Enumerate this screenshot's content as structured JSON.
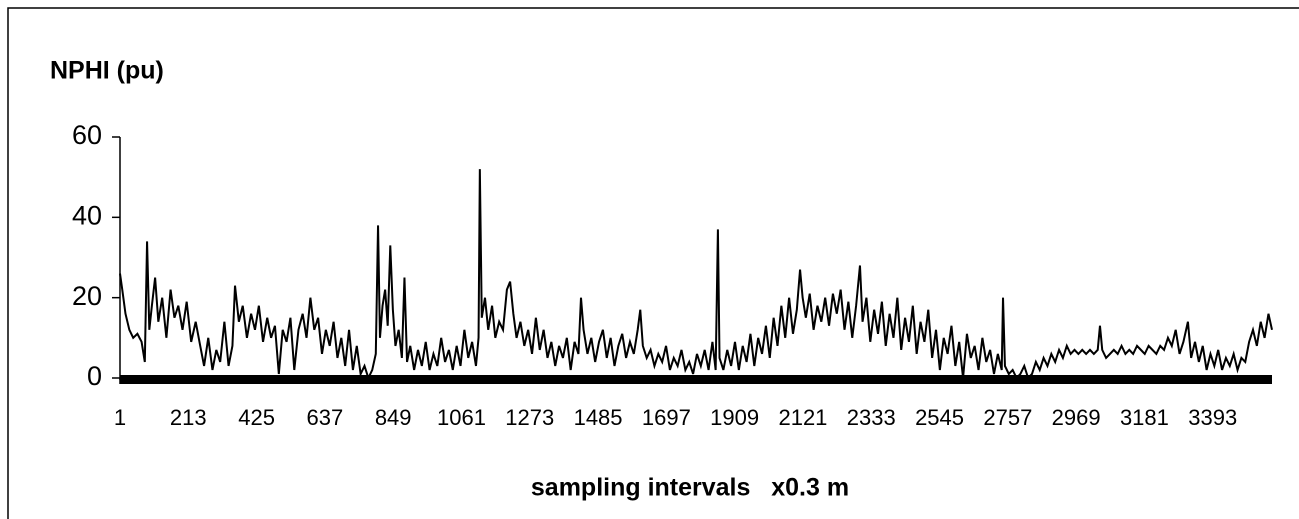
{
  "chart_data": {
    "type": "line",
    "title": "NPHI (pu)",
    "x_label": "sampling intervals   x0.3 m",
    "x": [
      1,
      8,
      18,
      30,
      42,
      55,
      68,
      78,
      85,
      92,
      100,
      110,
      120,
      132,
      145,
      158,
      170,
      182,
      195,
      208,
      222,
      236,
      250,
      262,
      275,
      288,
      300,
      312,
      325,
      338,
      350,
      358,
      370,
      382,
      395,
      408,
      420,
      432,
      445,
      458,
      470,
      482,
      494,
      506,
      518,
      530,
      542,
      555,
      568,
      580,
      592,
      604,
      616,
      628,
      640,
      652,
      664,
      676,
      688,
      700,
      712,
      724,
      736,
      748,
      760,
      772,
      784,
      795,
      802,
      808,
      816,
      824,
      832,
      840,
      848,
      856,
      866,
      876,
      884,
      892,
      902,
      914,
      926,
      938,
      950,
      962,
      974,
      986,
      998,
      1010,
      1022,
      1034,
      1046,
      1058,
      1070,
      1082,
      1094,
      1106,
      1114,
      1118,
      1124,
      1134,
      1144,
      1156,
      1166,
      1178,
      1190,
      1202,
      1212,
      1222,
      1232,
      1244,
      1256,
      1268,
      1280,
      1292,
      1304,
      1316,
      1328,
      1340,
      1352,
      1364,
      1376,
      1388,
      1400,
      1412,
      1424,
      1432,
      1440,
      1452,
      1464,
      1476,
      1488,
      1500,
      1512,
      1524,
      1536,
      1548,
      1560,
      1572,
      1584,
      1596,
      1608,
      1616,
      1624,
      1636,
      1648,
      1660,
      1672,
      1684,
      1696,
      1708,
      1720,
      1732,
      1744,
      1756,
      1768,
      1780,
      1792,
      1804,
      1816,
      1828,
      1840,
      1850,
      1857,
      1862,
      1874,
      1886,
      1898,
      1910,
      1922,
      1934,
      1946,
      1958,
      1970,
      1982,
      1994,
      2006,
      2018,
      2030,
      2042,
      2054,
      2066,
      2078,
      2090,
      2102,
      2112,
      2120,
      2130,
      2142,
      2154,
      2166,
      2178,
      2190,
      2202,
      2214,
      2226,
      2238,
      2250,
      2262,
      2274,
      2286,
      2298,
      2306,
      2318,
      2330,
      2342,
      2354,
      2366,
      2378,
      2390,
      2402,
      2414,
      2426,
      2438,
      2450,
      2462,
      2474,
      2486,
      2498,
      2510,
      2522,
      2534,
      2546,
      2558,
      2570,
      2582,
      2594,
      2606,
      2618,
      2630,
      2642,
      2654,
      2666,
      2678,
      2690,
      2702,
      2714,
      2726,
      2738,
      2742,
      2748,
      2760,
      2772,
      2784,
      2796,
      2808,
      2820,
      2832,
      2844,
      2856,
      2868,
      2880,
      2892,
      2904,
      2916,
      2928,
      2940,
      2952,
      2964,
      2976,
      2988,
      3000,
      3012,
      3024,
      3036,
      3043,
      3050,
      3062,
      3074,
      3086,
      3098,
      3110,
      3122,
      3134,
      3146,
      3158,
      3170,
      3182,
      3194,
      3206,
      3218,
      3230,
      3242,
      3254,
      3266,
      3278,
      3290,
      3302,
      3316,
      3326,
      3338,
      3350,
      3362,
      3374,
      3386,
      3398,
      3410,
      3422,
      3434,
      3446,
      3458,
      3470,
      3482,
      3494,
      3506,
      3518,
      3530,
      3542,
      3554,
      3566,
      3577
    ],
    "series": [
      {
        "color": "#000000",
        "values": [
          26,
          22,
          16,
          12,
          10,
          11,
          9,
          4,
          34,
          12,
          18,
          25,
          14,
          20,
          10,
          22,
          15,
          18,
          12,
          19,
          9,
          14,
          8,
          3,
          10,
          2,
          7,
          4,
          14,
          3,
          8,
          23,
          14,
          18,
          10,
          16,
          12,
          18,
          9,
          15,
          10,
          13,
          1,
          12,
          9,
          15,
          2,
          12,
          16,
          10,
          20,
          12,
          15,
          6,
          12,
          8,
          14,
          5,
          10,
          3,
          12,
          2,
          8,
          1,
          3,
          0,
          2,
          6,
          38,
          10,
          18,
          22,
          13,
          33,
          17,
          8,
          12,
          5,
          25,
          4,
          8,
          2,
          7,
          3,
          9,
          2,
          6,
          3,
          10,
          4,
          7,
          2,
          8,
          3,
          12,
          5,
          9,
          3,
          10,
          52,
          15,
          20,
          12,
          18,
          10,
          14,
          12,
          22,
          24,
          16,
          10,
          14,
          8,
          12,
          6,
          15,
          7,
          12,
          5,
          9,
          3,
          8,
          5,
          10,
          2,
          9,
          6,
          20,
          12,
          6,
          10,
          4,
          9,
          12,
          5,
          10,
          3,
          8,
          11,
          5,
          9,
          6,
          12,
          17,
          8,
          5,
          7,
          3,
          6,
          4,
          8,
          2,
          5,
          3,
          7,
          2,
          4,
          1,
          6,
          3,
          7,
          2,
          9,
          2,
          37,
          5,
          2,
          7,
          3,
          9,
          2,
          8,
          4,
          11,
          3,
          10,
          6,
          13,
          5,
          15,
          8,
          18,
          10,
          20,
          11,
          17,
          27,
          20,
          15,
          21,
          12,
          18,
          14,
          20,
          13,
          21,
          16,
          22,
          12,
          19,
          10,
          18,
          28,
          14,
          20,
          9,
          17,
          11,
          19,
          8,
          16,
          10,
          20,
          7,
          15,
          9,
          18,
          6,
          14,
          9,
          17,
          5,
          12,
          2,
          10,
          6,
          13,
          3,
          9,
          0,
          11,
          5,
          8,
          2,
          10,
          4,
          7,
          1,
          6,
          2,
          20,
          3,
          1,
          2,
          0,
          1,
          3,
          0,
          1,
          4,
          2,
          5,
          3,
          6,
          4,
          7,
          5,
          8,
          6,
          7,
          6,
          7,
          6,
          7,
          6,
          7,
          13,
          7,
          5,
          6,
          7,
          6,
          8,
          6,
          7,
          6,
          8,
          7,
          6,
          8,
          7,
          6,
          8,
          7,
          10,
          8,
          12,
          6,
          9,
          14,
          5,
          9,
          4,
          8,
          2,
          6,
          3,
          7,
          2,
          5,
          3,
          6,
          2,
          5,
          4,
          9,
          12,
          8,
          14,
          10,
          16,
          12
        ]
      }
    ],
    "xlim": [
      1,
      3577
    ],
    "xticks": [
      1,
      213,
      425,
      637,
      849,
      1061,
      1273,
      1485,
      1697,
      1909,
      2121,
      2333,
      2545,
      2757,
      2969,
      3181,
      3393
    ],
    "ylim": [
      0,
      60
    ],
    "yticks": [
      0,
      20,
      40,
      60
    ]
  }
}
